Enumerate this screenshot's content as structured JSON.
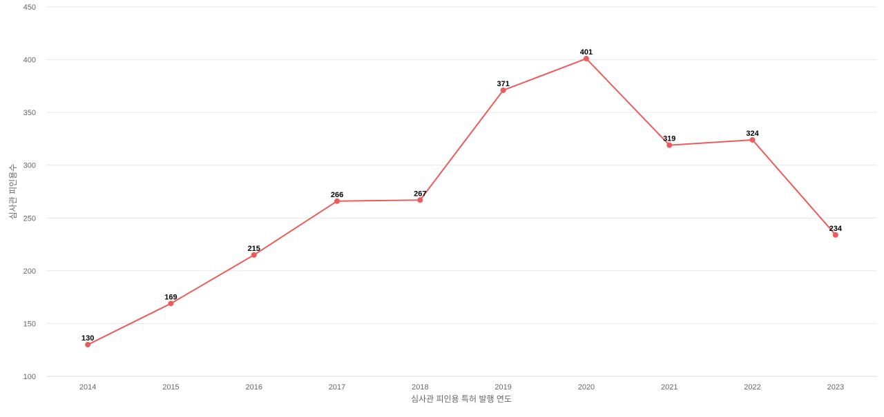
{
  "chart_data": {
    "type": "line",
    "title": "",
    "xlabel": "심사관 피인용 특허 발행 연도",
    "ylabel": "심사관 피인용수",
    "categories": [
      "2014",
      "2015",
      "2016",
      "2017",
      "2018",
      "2019",
      "2020",
      "2021",
      "2022",
      "2023"
    ],
    "series": [
      {
        "values": [
          130,
          169,
          215,
          266,
          267,
          371,
          401,
          319,
          324,
          234
        ]
      }
    ],
    "ylim": [
      100,
      450
    ],
    "yticks": [
      100,
      150,
      200,
      250,
      300,
      350,
      400,
      450
    ],
    "grid": true,
    "data_labels": true,
    "colors": {
      "line": "#ee5a5a",
      "grid": "#e6e6e6"
    }
  }
}
